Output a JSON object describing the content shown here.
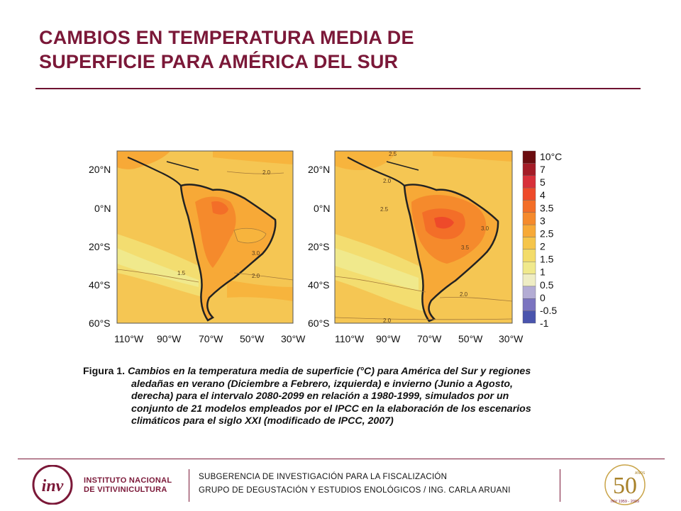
{
  "title": {
    "line1": "CAMBIOS EN TEMPERATURA MEDIA DE",
    "line2": "SUPERFICIE PARA AMÉRICA DEL SUR"
  },
  "maps": {
    "lat_ticks": [
      "20°N",
      "0°N",
      "20°S",
      "40°S",
      "60°S"
    ],
    "lon_ticks": [
      "110°W",
      "90°W",
      "70°W",
      "50°W",
      "30°W"
    ],
    "left_contours": [
      "2.0",
      "3.0",
      "2.0",
      "1.5"
    ],
    "right_contours": [
      "2.5",
      "2.0",
      "2.5",
      "3.5",
      "3.0",
      "2.0",
      "2.0"
    ]
  },
  "colorbar": {
    "labels": [
      "10°C",
      "7",
      "5",
      "4",
      "3.5",
      "3",
      "2.5",
      "2",
      "1.5",
      "1",
      "0.5",
      "0",
      "-0.5",
      "-1"
    ],
    "colors": [
      "#6b0d10",
      "#a41c27",
      "#d8303a",
      "#ee4a2a",
      "#f36e28",
      "#f58a2c",
      "#f7a937",
      "#f5c54b",
      "#f3dc6a",
      "#f0e98c",
      "#efedc4",
      "#b3acd4",
      "#7b74c0",
      "#4a54ad"
    ]
  },
  "caption": {
    "fig_label": "Figura 1.",
    "line1": "Cambios en la temperatura media de superficie (°C) para América del Sur y regiones",
    "line2": "aledañas en   verano (Diciembre a Febrero, izquierda) e invierno (Junio a Agosto,",
    "line3": "derecha) para el intervalo 2080-2099 en relación a 1980-1999, simulados por un",
    "line4": "conjunto de 21 modelos empleados por el IPCC en la elaboración de los escenarios",
    "line5": "climáticos para el siglo XXI (modificado de IPCC, 2007)"
  },
  "footer": {
    "logo_mark": "inv",
    "logo_line1": "INSTITUTO NACIONAL",
    "logo_line2": "DE VITIVINICULTURA",
    "line1": "SUBGERENCIA DE INVESTIGACIÓN PARA LA FISCALIZACIÓN",
    "line2": "GRUPO DE DEGUSTACIÓN Y ESTUDIOS ENOLÓGICOS / ING. CARLA ARUANI",
    "badge_number": "50",
    "badge_small": "AÑOS",
    "badge_years": "INV 1959 - 2009"
  }
}
